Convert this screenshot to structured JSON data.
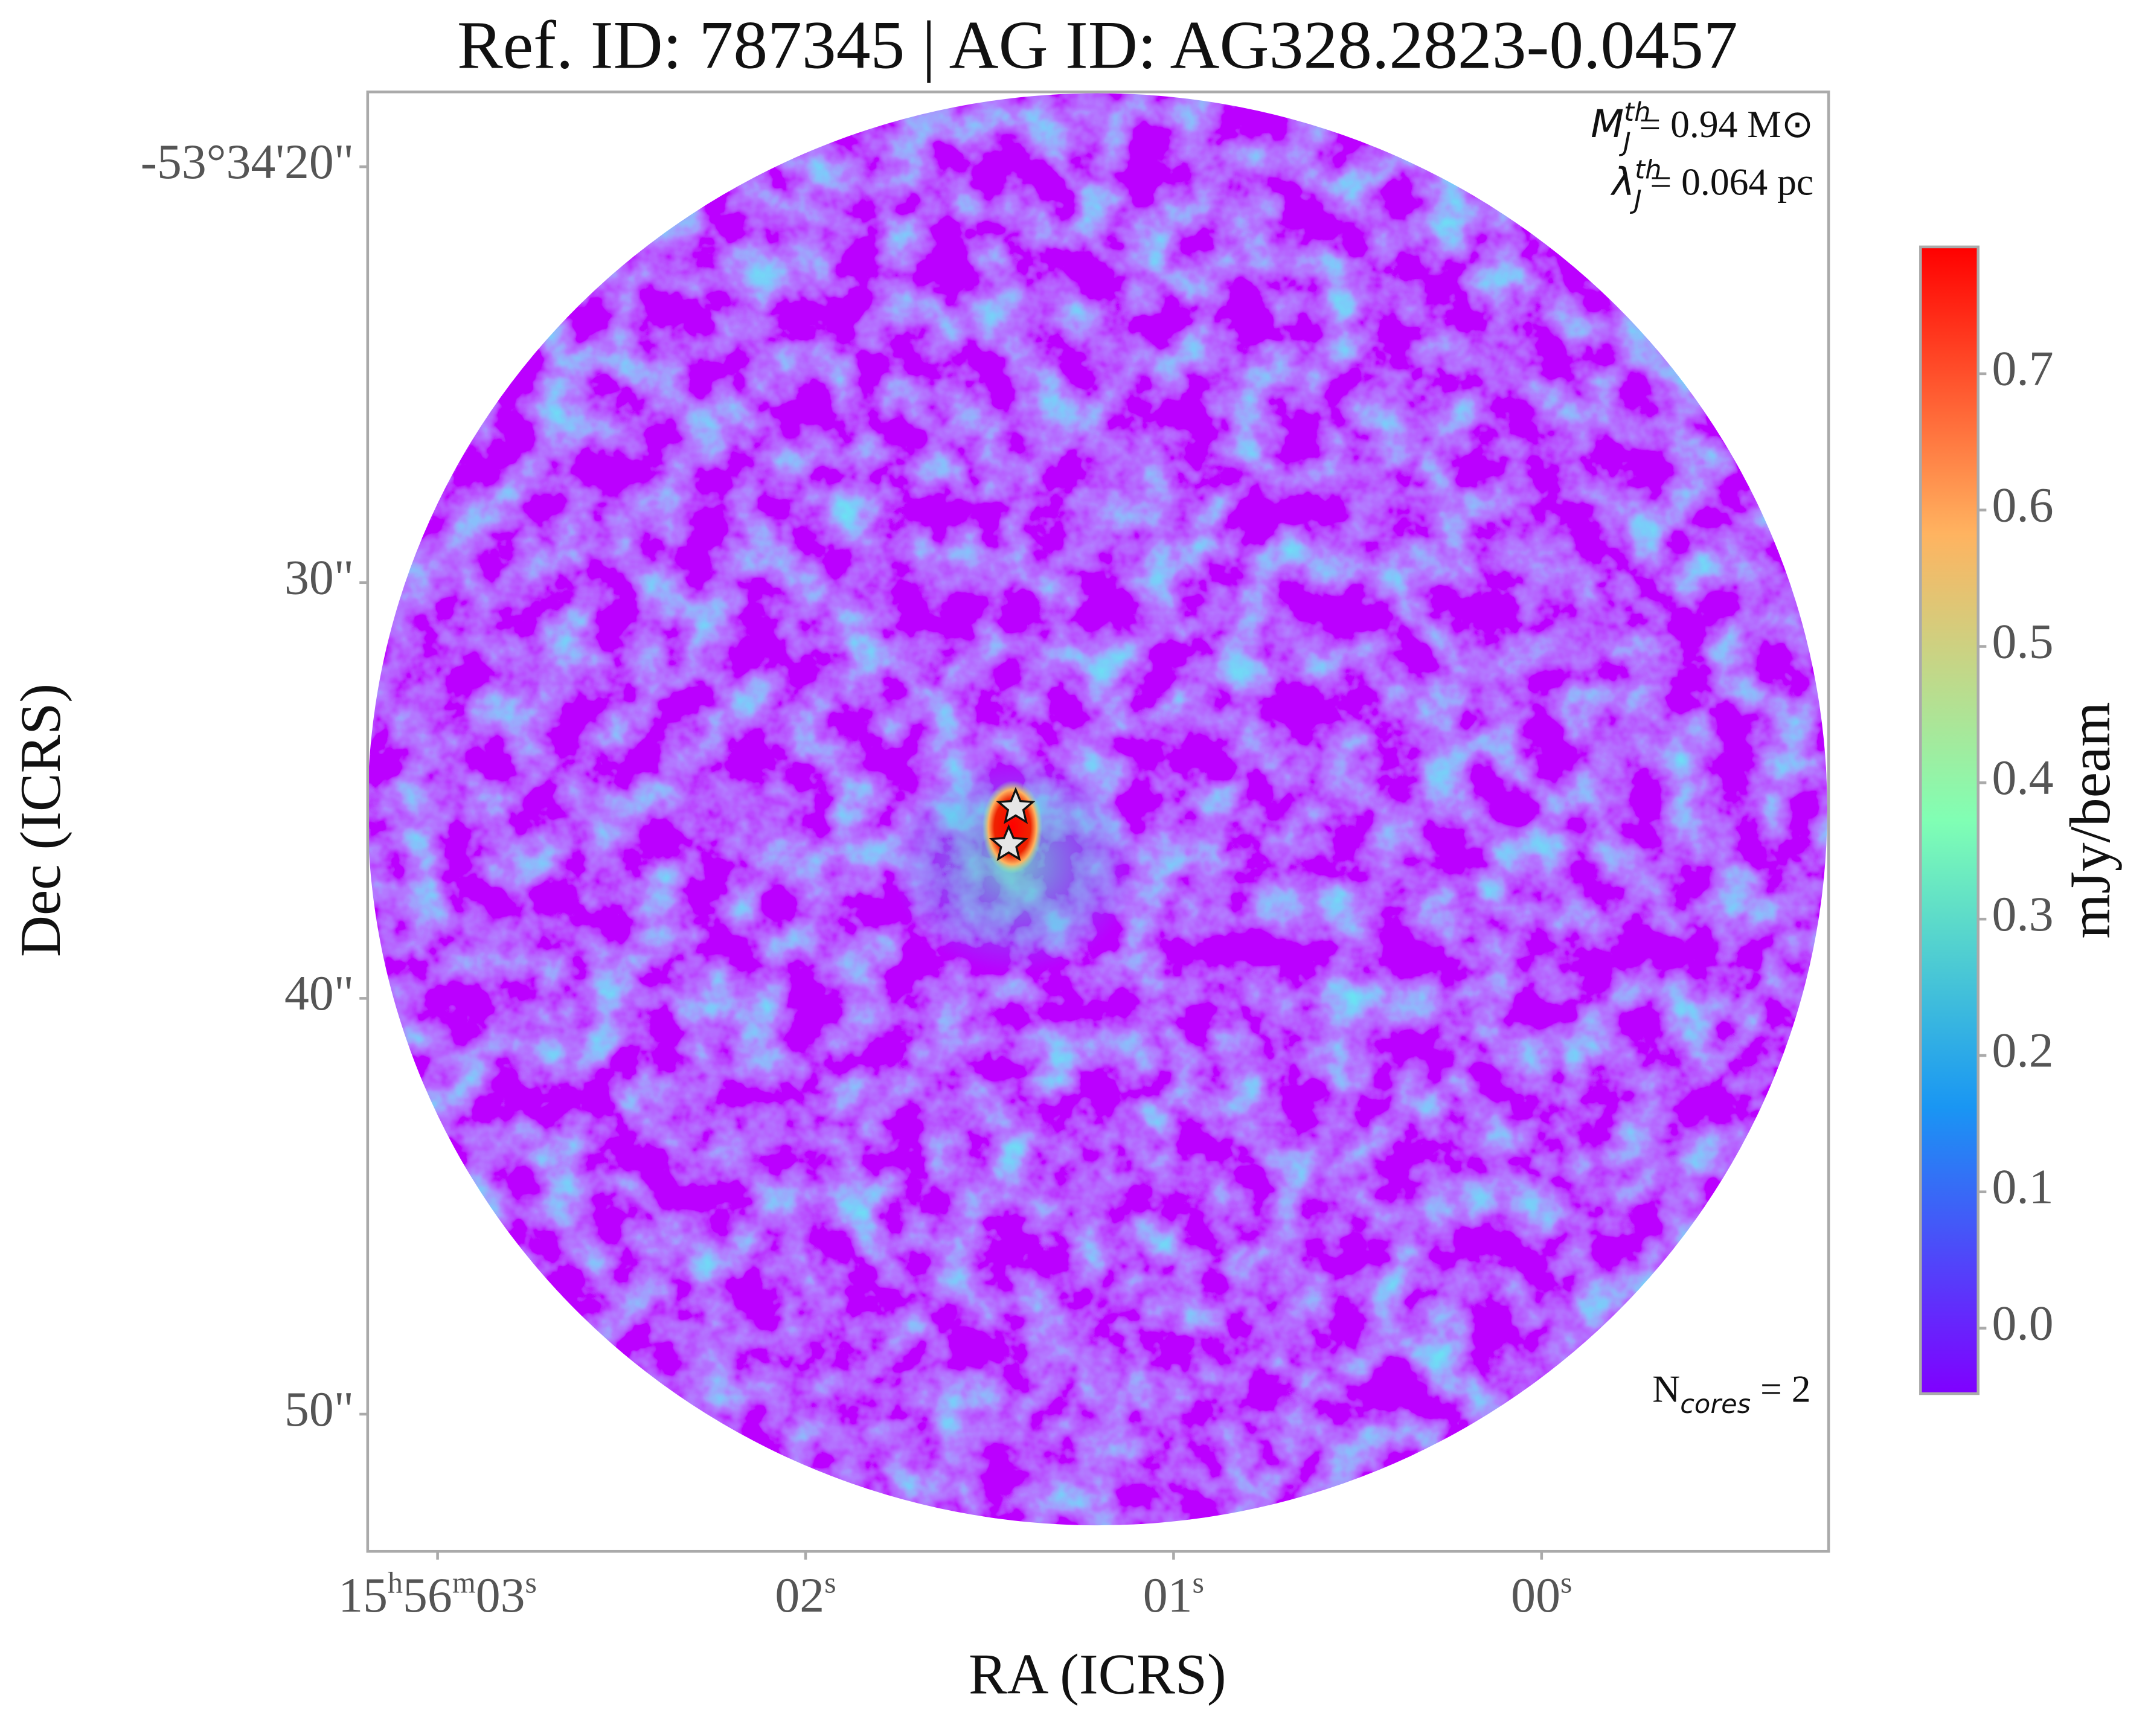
{
  "chart_data": {
    "type": "image",
    "title": "Ref. ID: 787345 | AG ID: AG328.2823-0.0457",
    "x_label": "RA (ICRS)",
    "y_label": "Dec (ICRS)",
    "xlim": [
      3.19,
      -0.78
    ],
    "xticks": [
      {
        "value": 3,
        "label": "15h56m03s"
      },
      {
        "value": 2,
        "label": "02s"
      },
      {
        "value": 1,
        "label": "01s"
      },
      {
        "value": 0,
        "label": "00s"
      }
    ],
    "ylim": [
      53.3,
      18.2
    ],
    "yticks": [
      {
        "value": 20,
        "label": "-53°34'20\""
      },
      {
        "value": 30,
        "label": "30\""
      },
      {
        "value": 40,
        "label": "40\""
      },
      {
        "value": 50,
        "label": "50\""
      }
    ],
    "colorbar": {
      "label": "mJy/beam",
      "clim": [
        -0.048,
        0.793
      ],
      "ticks": [
        {
          "value": 0,
          "label": "0.0"
        },
        0.1,
        0.2,
        0.3,
        0.4,
        0.5,
        0.6,
        0.7
      ]
    },
    "markers": {
      "x": [
        1.429,
        1.448
      ],
      "y": [
        35.41,
        36.3
      ]
    },
    "annotations": {
      "jeans_mass": {
        "symbol": "M",
        "sup": "th",
        "sub": "J",
        "text": "= 0.94 M⊙"
      },
      "jeans_length": {
        "symbol": "λ",
        "sup": "th",
        "sub": "J",
        "text": "= 0.064 pc"
      },
      "n_cores": {
        "symbol": "N",
        "sub": "cores",
        "text": " = 2"
      }
    }
  }
}
